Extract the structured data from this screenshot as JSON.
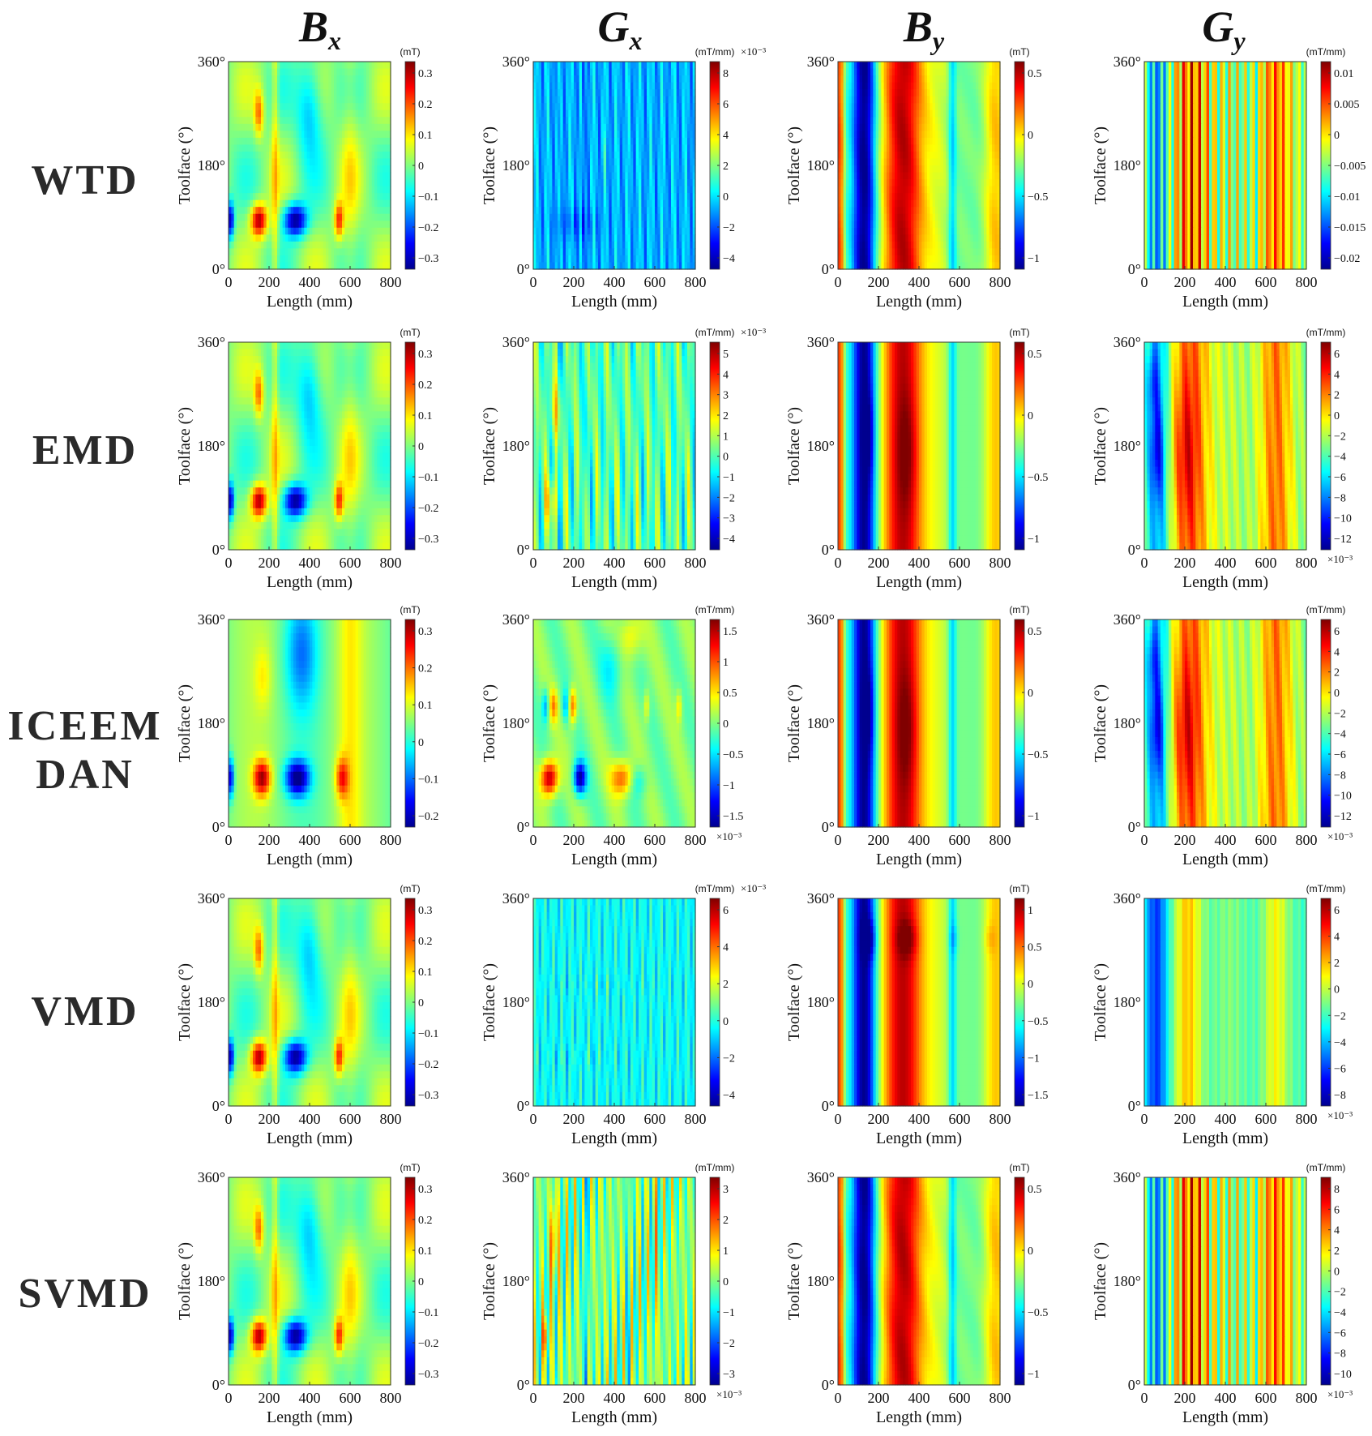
{
  "column_titles": [
    {
      "base": "B",
      "sub": "x"
    },
    {
      "base": "G",
      "sub": "x"
    },
    {
      "base": "B",
      "sub": "y"
    },
    {
      "base": "G",
      "sub": "y"
    }
  ],
  "row_labels": [
    [
      "WTD"
    ],
    [
      "EMD"
    ],
    [
      "ICEEM",
      "DAN"
    ],
    [
      "VMD"
    ],
    [
      "SVMD"
    ]
  ],
  "axis": {
    "xlabel": "Length (mm)",
    "ylabel": "Toolface (°)",
    "xticks": [
      "0",
      "200",
      "400",
      "600",
      "800"
    ],
    "yticks": [
      "0°",
      "180°",
      "360°"
    ]
  },
  "colormap": [
    "#00008f",
    "#0000ff",
    "#0080ff",
    "#00ffff",
    "#80ff80",
    "#ffff00",
    "#ff8000",
    "#ff0000",
    "#800000"
  ],
  "chart_data": [
    {
      "type": "heatmap",
      "row": "WTD",
      "col": "Bx",
      "unit": "(mT)",
      "exp": "",
      "cticks": [
        "0.3",
        "0.2",
        "0.1",
        "0",
        "−0.1",
        "−0.2",
        "−0.3"
      ],
      "xlim": [
        0,
        800
      ],
      "ylim": [
        0,
        360
      ],
      "pattern": "Bx"
    },
    {
      "type": "heatmap",
      "row": "WTD",
      "col": "Gx",
      "unit": "(mT/mm)",
      "exp": "×10⁻³",
      "exp_pos": "top",
      "cticks": [
        "8",
        "6",
        "4",
        "2",
        "0",
        "−2",
        "−4"
      ],
      "xlim": [
        0,
        800
      ],
      "ylim": [
        0,
        360
      ],
      "pattern": "GxWTD"
    },
    {
      "type": "heatmap",
      "row": "WTD",
      "col": "By",
      "unit": "(mT)",
      "exp": "",
      "cticks": [
        "0.5",
        "0",
        "−0.5",
        "−1"
      ],
      "xlim": [
        0,
        800
      ],
      "ylim": [
        0,
        360
      ],
      "pattern": "By"
    },
    {
      "type": "heatmap",
      "row": "WTD",
      "col": "Gy",
      "unit": "(mT/mm)",
      "exp": "",
      "cticks": [
        "0.01",
        "0.005",
        "0",
        "−0.005",
        "−0.01",
        "−0.015",
        "−0.02"
      ],
      "xlim": [
        0,
        800
      ],
      "ylim": [
        0,
        360
      ],
      "pattern": "GyFine"
    },
    {
      "type": "heatmap",
      "row": "EMD",
      "col": "Bx",
      "unit": "(mT)",
      "exp": "",
      "cticks": [
        "0.3",
        "0.2",
        "0.1",
        "0",
        "−0.1",
        "−0.2",
        "−0.3"
      ],
      "xlim": [
        0,
        800
      ],
      "ylim": [
        0,
        360
      ],
      "pattern": "Bx"
    },
    {
      "type": "heatmap",
      "row": "EMD",
      "col": "Gx",
      "unit": "(mT/mm)",
      "exp": "×10⁻³",
      "exp_pos": "top",
      "cticks": [
        "5",
        "4",
        "3",
        "2",
        "1",
        "0",
        "−1",
        "−2",
        "−3",
        "−4"
      ],
      "xlim": [
        0,
        800
      ],
      "ylim": [
        0,
        360
      ],
      "pattern": "GxEMD"
    },
    {
      "type": "heatmap",
      "row": "EMD",
      "col": "By",
      "unit": "(mT)",
      "exp": "",
      "cticks": [
        "0.5",
        "0",
        "−0.5",
        "−1"
      ],
      "xlim": [
        0,
        800
      ],
      "ylim": [
        0,
        360
      ],
      "pattern": "ByBlob"
    },
    {
      "type": "heatmap",
      "row": "EMD",
      "col": "Gy",
      "unit": "(mT/mm)",
      "exp": "×10⁻³",
      "exp_pos": "bottom",
      "cticks": [
        "6",
        "4",
        "2",
        "0",
        "−2",
        "−4",
        "−6",
        "−8",
        "−10",
        "−12"
      ],
      "xlim": [
        0,
        800
      ],
      "ylim": [
        0,
        360
      ],
      "pattern": "GyBroad"
    },
    {
      "type": "heatmap",
      "row": "ICEEMDAN",
      "col": "Bx",
      "unit": "(mT)",
      "exp": "",
      "cticks": [
        "0.3",
        "0.2",
        "0.1",
        "0",
        "−0.1",
        "−0.2"
      ],
      "xlim": [
        0,
        800
      ],
      "ylim": [
        0,
        360
      ],
      "pattern": "BxSmooth"
    },
    {
      "type": "heatmap",
      "row": "ICEEMDAN",
      "col": "Gx",
      "unit": "(mT/mm)",
      "exp": "×10⁻³",
      "exp_pos": "bottom",
      "cticks": [
        "1.5",
        "1",
        "0.5",
        "0",
        "−0.5",
        "−1",
        "−1.5"
      ],
      "xlim": [
        0,
        800
      ],
      "ylim": [
        0,
        360
      ],
      "pattern": "GxICE"
    },
    {
      "type": "heatmap",
      "row": "ICEEMDAN",
      "col": "By",
      "unit": "(mT)",
      "exp": "",
      "cticks": [
        "0.5",
        "0",
        "−0.5",
        "−1"
      ],
      "xlim": [
        0,
        800
      ],
      "ylim": [
        0,
        360
      ],
      "pattern": "ByBlob"
    },
    {
      "type": "heatmap",
      "row": "ICEEMDAN",
      "col": "Gy",
      "unit": "(mT/mm)",
      "exp": "×10⁻³",
      "exp_pos": "bottom",
      "cticks": [
        "6",
        "4",
        "2",
        "0",
        "−2",
        "−4",
        "−6",
        "−8",
        "−10",
        "−12"
      ],
      "xlim": [
        0,
        800
      ],
      "ylim": [
        0,
        360
      ],
      "pattern": "GyBroad"
    },
    {
      "type": "heatmap",
      "row": "VMD",
      "col": "Bx",
      "unit": "(mT)",
      "exp": "",
      "cticks": [
        "0.3",
        "0.2",
        "0.1",
        "0",
        "−0.1",
        "−0.2",
        "−0.3"
      ],
      "xlim": [
        0,
        800
      ],
      "ylim": [
        0,
        360
      ],
      "pattern": "Bx"
    },
    {
      "type": "heatmap",
      "row": "VMD",
      "col": "Gx",
      "unit": "(mT/mm)",
      "exp": "×10⁻³",
      "exp_pos": "top",
      "cticks": [
        "6",
        "4",
        "2",
        "0",
        "−2",
        "−4"
      ],
      "xlim": [
        0,
        800
      ],
      "ylim": [
        0,
        360
      ],
      "pattern": "GxVMD"
    },
    {
      "type": "heatmap",
      "row": "VMD",
      "col": "By",
      "unit": "(mT)",
      "exp": "",
      "cticks": [
        "1",
        "0.5",
        "0",
        "−0.5",
        "−1",
        "−1.5"
      ],
      "xlim": [
        0,
        800
      ],
      "ylim": [
        0,
        360
      ],
      "pattern": "ByVMD"
    },
    {
      "type": "heatmap",
      "row": "VMD",
      "col": "Gy",
      "unit": "(mT/mm)",
      "exp": "×10⁻³",
      "exp_pos": "bottom",
      "cticks": [
        "6",
        "4",
        "2",
        "0",
        "−2",
        "−4",
        "−6",
        "−8"
      ],
      "xlim": [
        0,
        800
      ],
      "ylim": [
        0,
        360
      ],
      "pattern": "GyVMD"
    },
    {
      "type": "heatmap",
      "row": "SVMD",
      "col": "Bx",
      "unit": "(mT)",
      "exp": "",
      "cticks": [
        "0.3",
        "0.2",
        "0.1",
        "0",
        "−0.1",
        "−0.2",
        "−0.3"
      ],
      "xlim": [
        0,
        800
      ],
      "ylim": [
        0,
        360
      ],
      "pattern": "Bx"
    },
    {
      "type": "heatmap",
      "row": "SVMD",
      "col": "Gx",
      "unit": "(mT/mm)",
      "exp": "×10⁻³",
      "exp_pos": "bottom",
      "cticks": [
        "3",
        "2",
        "1",
        "0",
        "−1",
        "−2",
        "−3"
      ],
      "xlim": [
        0,
        800
      ],
      "ylim": [
        0,
        360
      ],
      "pattern": "GxSVMD"
    },
    {
      "type": "heatmap",
      "row": "SVMD",
      "col": "By",
      "unit": "(mT)",
      "exp": "",
      "cticks": [
        "0.5",
        "0",
        "−0.5",
        "−1"
      ],
      "xlim": [
        0,
        800
      ],
      "ylim": [
        0,
        360
      ],
      "pattern": "By"
    },
    {
      "type": "heatmap",
      "row": "SVMD",
      "col": "Gy",
      "unit": "(mT/mm)",
      "exp": "×10⁻³",
      "exp_pos": "bottom",
      "cticks": [
        "8",
        "6",
        "4",
        "2",
        "0",
        "−2",
        "−4",
        "−6",
        "−8",
        "−10"
      ],
      "xlim": [
        0,
        800
      ],
      "ylim": [
        0,
        360
      ],
      "pattern": "GyFine"
    }
  ]
}
